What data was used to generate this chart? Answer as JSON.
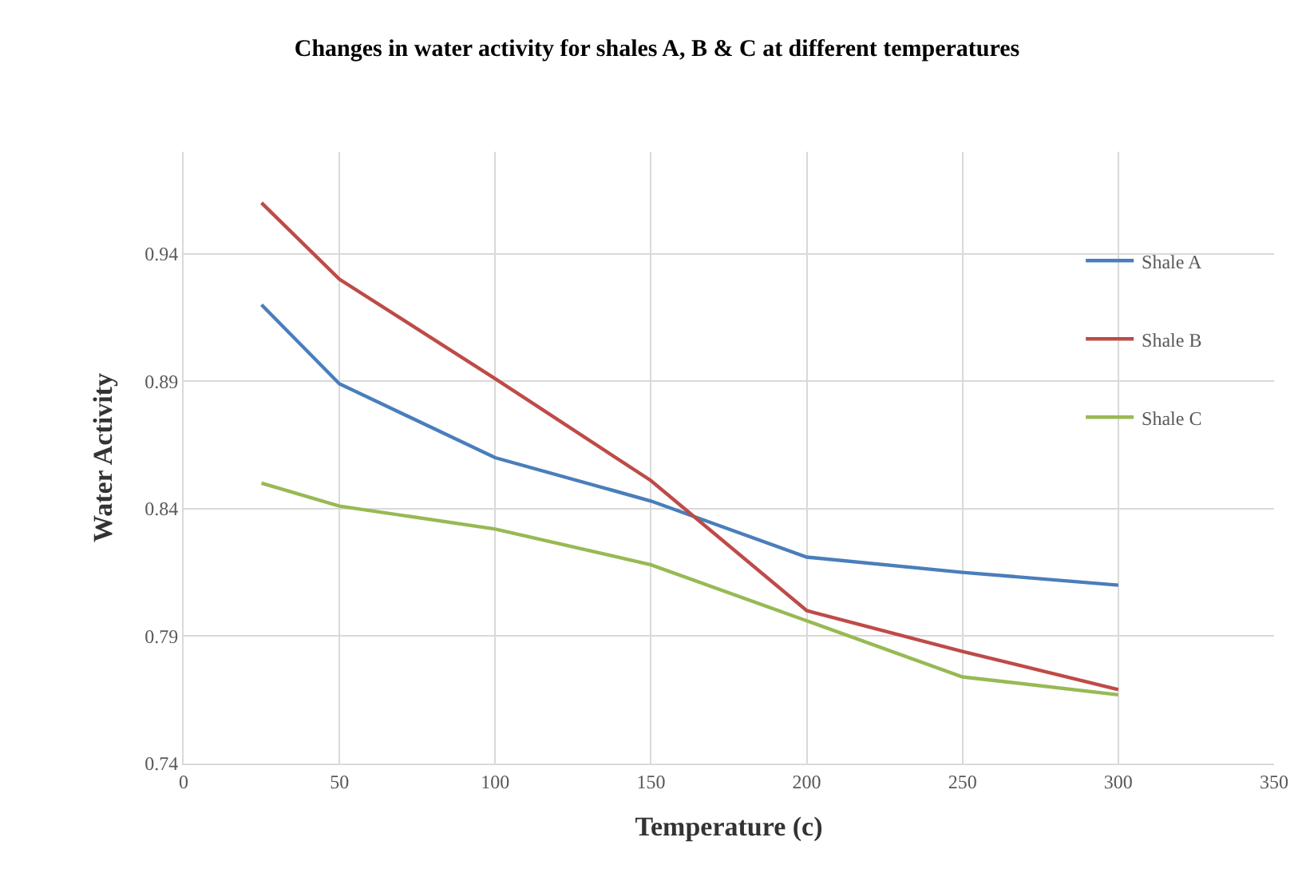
{
  "chart_data": {
    "type": "line",
    "title": "Changes in water activity for shales A, B & C at different temperatures",
    "xlabel": "Temperature (c)",
    "ylabel": "Water Activity",
    "x": [
      25,
      50,
      100,
      150,
      200,
      250,
      300
    ],
    "series": [
      {
        "name": "Shale A",
        "color": "#4a7ebb",
        "values": [
          0.92,
          0.889,
          0.86,
          0.843,
          0.821,
          0.815,
          0.81
        ]
      },
      {
        "name": "Shale B",
        "color": "#be4b48",
        "values": [
          0.96,
          0.93,
          0.891,
          0.851,
          0.8,
          0.784,
          0.769
        ]
      },
      {
        "name": "Shale C",
        "color": "#98b954",
        "values": [
          0.85,
          0.841,
          0.832,
          0.818,
          0.796,
          0.774,
          0.767
        ]
      }
    ],
    "xlim": [
      0,
      350
    ],
    "xticks": [
      0,
      50,
      100,
      150,
      200,
      250,
      300,
      350
    ],
    "ylim": [
      0.74,
      0.98
    ],
    "yticks": [
      0.74,
      0.79,
      0.84,
      0.89,
      0.94
    ],
    "grid": true,
    "legend": "top right",
    "marker": "none",
    "line_style": "solid"
  }
}
